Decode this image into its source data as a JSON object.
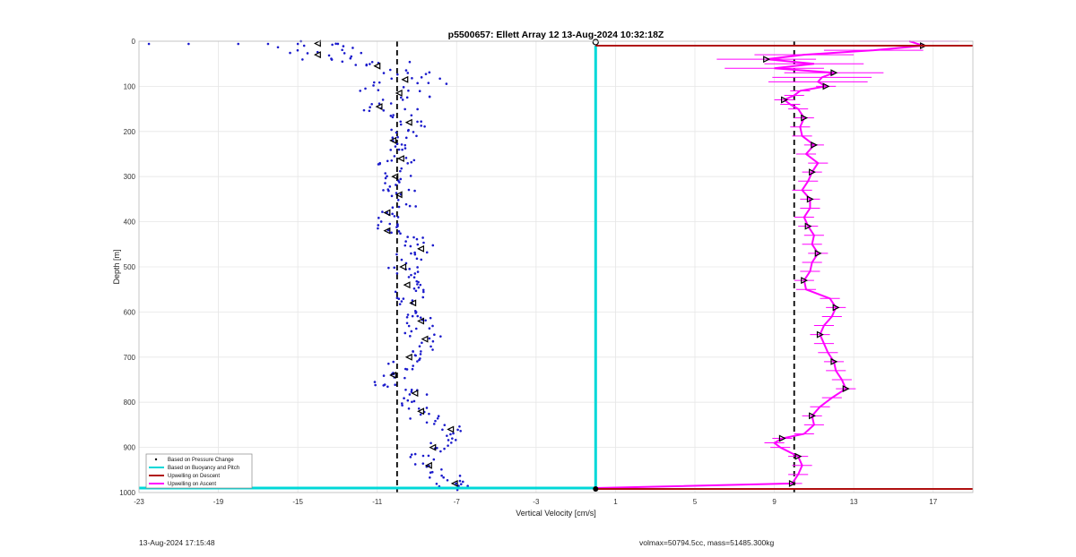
{
  "chart_data": {
    "type": "scatter",
    "title": "p5500657: Ellett Array 12 13-Aug-2024 10:32:18Z",
    "xlabel": "Vertical Velocity [cm/s]",
    "ylabel": "Depth [m]",
    "xlim": [
      -23,
      19
    ],
    "ylim": [
      0,
      1000
    ],
    "y_reversed": true,
    "grid": true,
    "x_ticks": [
      -23,
      -19,
      -15,
      -11,
      -7,
      -3,
      1,
      5,
      9,
      13,
      17
    ],
    "y_ticks": [
      0,
      100,
      200,
      300,
      400,
      500,
      600,
      700,
      800,
      900,
      1000
    ],
    "legend_position": "bottom-left",
    "legend": [
      {
        "label": "Based on Pressure Change",
        "color": "#000000",
        "style": "dot"
      },
      {
        "label": "Based on Buoyancy and Pitch",
        "color": "#00d8d8",
        "style": "line"
      },
      {
        "label": "Upwelling on Descent",
        "color": "#b01010",
        "style": "line"
      },
      {
        "label": "Upwelling on Ascent",
        "color": "#ff00ff",
        "style": "line"
      }
    ],
    "reference_lines": [
      {
        "x": -10,
        "color": "#000000",
        "style": "dashed"
      },
      {
        "x": 10,
        "color": "#000000",
        "style": "dashed"
      }
    ],
    "series": [
      {
        "name": "Based on Buoyancy and Pitch",
        "color": "#00d8d8",
        "x": [
          0,
          0,
          -23
        ],
        "y": [
          10,
          990,
          990
        ]
      },
      {
        "name": "Upwelling on Descent",
        "color": "#b01010",
        "x": [
          0,
          19,
          0,
          19
        ],
        "y": [
          10,
          10,
          992,
          992
        ]
      },
      {
        "color": "#1a1acc",
        "depth": [
          5,
          20,
          30,
          45,
          55,
          70,
          85,
          100,
          115,
          130,
          145,
          160,
          180,
          200,
          220,
          240,
          260,
          280,
          300,
          320,
          340,
          360,
          380,
          400,
          420,
          440,
          460,
          480,
          500,
          520,
          540,
          560,
          580,
          600,
          620,
          640,
          660,
          680,
          700,
          720,
          740,
          760,
          780,
          800,
          820,
          840,
          860,
          880,
          900,
          920,
          940,
          960,
          980,
          990
        ],
        "velocity": [
          -14,
          -13.5,
          -14,
          -13,
          -11,
          -10,
          -9.6,
          -9.5,
          -9.9,
          -10.1,
          -10.9,
          -9.6,
          -9.4,
          -9.8,
          -10.2,
          -10,
          -9.8,
          -10.2,
          -10.1,
          -9.9,
          -9.9,
          -9.8,
          -10.5,
          -10.7,
          -10.5,
          -9.3,
          -8.8,
          -9.5,
          -9.7,
          -9.6,
          -9.5,
          -9.4,
          -9.2,
          -9.4,
          -8.8,
          -8.8,
          -8.6,
          -8.8,
          -9.4,
          -9.7,
          -10.2,
          -10.8,
          -9.1,
          -9.1,
          -8.8,
          -8.7,
          -7.3,
          -7.6,
          -8.2,
          -8.6,
          -8.4,
          -7.6,
          -7.1,
          -7.5
        ],
        "marker": "dot"
      },
      {
        "name": "Upwelling on Ascent",
        "color": "#ff00ff",
        "depth": [
          0,
          10,
          20,
          30,
          40,
          50,
          60,
          70,
          80,
          90,
          100,
          110,
          120,
          130,
          140,
          150,
          170,
          190,
          210,
          230,
          250,
          270,
          290,
          310,
          330,
          350,
          370,
          390,
          410,
          430,
          450,
          470,
          490,
          510,
          530,
          550,
          570,
          590,
          610,
          630,
          650,
          670,
          690,
          710,
          730,
          750,
          770,
          790,
          810,
          830,
          850,
          870,
          880,
          890,
          900,
          920,
          940,
          960,
          980,
          990
        ],
        "velocity": [
          15.8,
          16.5,
          14,
          10.5,
          8.6,
          11,
          9,
          12,
          11.4,
          11.2,
          11.6,
          10.3,
          10,
          9.5,
          9.8,
          10.2,
          10.5,
          10.3,
          10.4,
          11,
          10.6,
          11.2,
          10.9,
          10.7,
          10.4,
          10.8,
          10.8,
          10.5,
          10.7,
          11,
          10.9,
          11.2,
          10.9,
          10.8,
          10.5,
          10.6,
          11.8,
          12.1,
          11.9,
          11.5,
          11.3,
          11.5,
          11.7,
          12,
          12.1,
          12.4,
          12.6,
          11.9,
          11.3,
          10.9,
          11,
          10.5,
          9.4,
          9,
          9.3,
          10.2,
          10.4,
          10.2,
          9.9,
          0
        ],
        "marker": "line"
      }
    ]
  },
  "footer": {
    "timestamp": "13-Aug-2024 17:15:48",
    "volmax": "volmax=50794.5cc, mass=51485.300kg"
  },
  "colors": {
    "dot_series": "#1a1acc",
    "buoyancy": "#00d8d8",
    "descent": "#b01010",
    "ascent": "#ff00ff",
    "grid": "#e6e6e6"
  }
}
